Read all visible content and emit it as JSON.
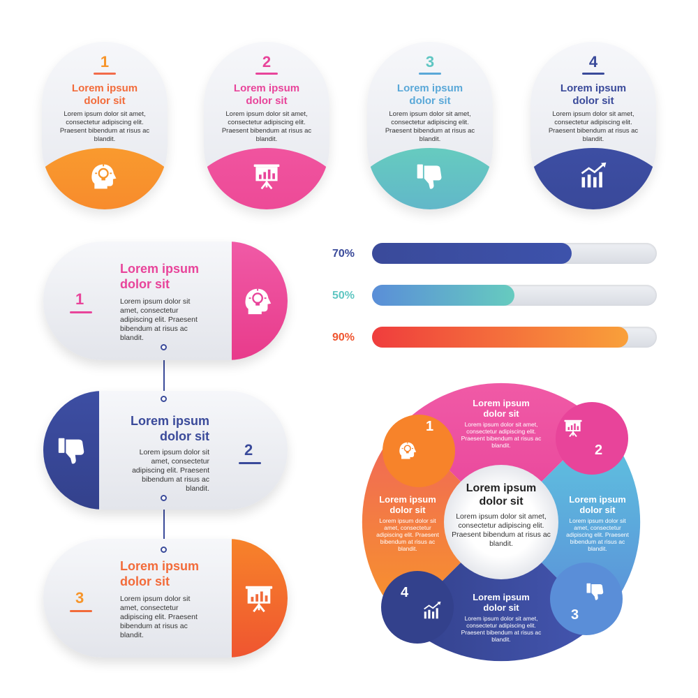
{
  "colors": {
    "orange": "#f7952a",
    "pink": "#e8449a",
    "teal": "#5fc6c2",
    "blue": "#3a4a9a",
    "red": "#ef3d3d",
    "lightblue": "#5a9bd8"
  },
  "cards": [
    {
      "number": "1",
      "title": "Lorem ipsum\ndolor sit",
      "body": "Lorem ipsum dolor sit amet, consectetur adipiscing elit. Praesent bibendum at risus ac blandit.",
      "icon": "idea-head-icon"
    },
    {
      "number": "2",
      "title": "Lorem ipsum\ndolor sit",
      "body": "Lorem ipsum dolor sit amet, consectetur adipiscing elit. Praesent bibendum at risus ac blandit.",
      "icon": "presentation-board-icon"
    },
    {
      "number": "3",
      "title": "Lorem ipsum\ndolor sit",
      "body": "Lorem ipsum dolor sit amet, consectetur adipiscing elit. Praesent bibendum at risus ac blandit.",
      "icon": "thumbs-down-icon"
    },
    {
      "number": "4",
      "title": "Lorem ipsum\ndolor sit",
      "body": "Lorem ipsum dolor sit amet, consectetur adipiscing elit. Praesent bibendum at risus ac blandit.",
      "icon": "bar-chart-icon"
    }
  ],
  "timeline": [
    {
      "number": "1",
      "title": "Lorem ipsum\ndolor sit",
      "body": "Lorem ipsum dolor sit amet, consectetur adipiscing elit. Praesent bibendum at risus ac blandit.",
      "icon": "idea-head-icon"
    },
    {
      "number": "2",
      "title": "Lorem ipsum\ndolor sit",
      "body": "Lorem ipsum dolor sit amet, consectetur adipiscing elit. Praesent bibendum at risus ac blandit.",
      "icon": "thumbs-down-icon"
    },
    {
      "number": "3",
      "title": "Lorem ipsum\ndolor sit",
      "body": "Lorem ipsum dolor sit amet, consectetur adipiscing elit. Praesent bibendum at risus ac blandit.",
      "icon": "presentation-board-icon"
    }
  ],
  "progress": [
    {
      "label": "70%",
      "value": 0.7
    },
    {
      "label": "50%",
      "value": 0.5
    },
    {
      "label": "90%",
      "value": 0.9
    }
  ],
  "wheel": {
    "center_title": "Lorem ipsum\ndolor sit",
    "center_body": "Lorem ipsum dolor sit amet, consectetur adipiscing elit. Praesent bibendum at risus ac blandit.",
    "segments": [
      {
        "number": "1",
        "title": "Lorem ipsum\ndolor sit",
        "body": "Lorem ipsum dolor sit amet, consectetur adipiscing elit. Praesent bibendum at risus ac blandit.",
        "icon": "idea-head-icon"
      },
      {
        "number": "2",
        "title": "Lorem ipsum\ndolor sit",
        "body": "Lorem ipsum dolor sit amet, consectetur adipiscing elit. Praesent bibendum at risus ac blandit.",
        "icon": "presentation-board-icon"
      },
      {
        "number": "3",
        "title": "Lorem ipsum\ndolor sit",
        "body": "Lorem ipsum dolor sit amet, consectetur adipiscing elit. Praesent bibendum at risus ac blandit.",
        "icon": "thumbs-down-icon"
      },
      {
        "number": "4",
        "title": "Lorem ipsum\ndolor sit",
        "body": "Lorem ipsum dolor sit amet, consectetur adipiscing elit. Praesent bibendum at risus ac blandit.",
        "icon": "bar-chart-icon"
      }
    ]
  }
}
